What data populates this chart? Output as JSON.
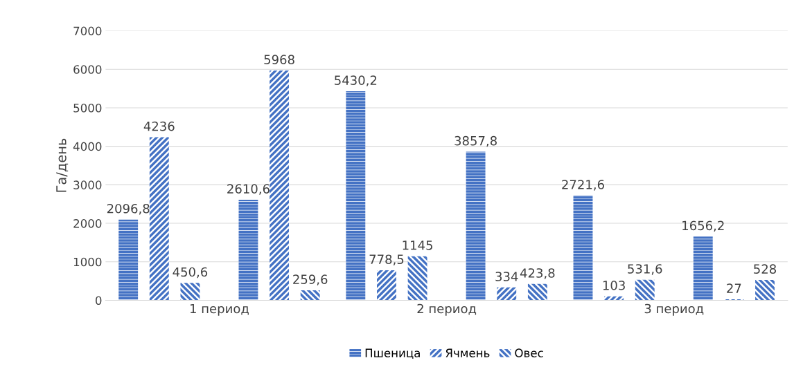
{
  "chart_data": {
    "type": "bar",
    "ylabel": "Га/день",
    "categories": [
      "1 период",
      "2 период",
      "3 период"
    ],
    "series": [
      {
        "name": "Пшеница",
        "color": "#4472c4",
        "values": [
          2096.8,
          5430.2,
          2721.6
        ],
        "value_labels": [
          "2096,8",
          "5430,2",
          "2721,6"
        ]
      },
      {
        "name": "Ячмень",
        "color": "#4472c4",
        "values": [
          4236,
          778.5,
          103
        ],
        "value_labels": [
          "4236",
          "778,5",
          "103"
        ]
      },
      {
        "name": "Овес",
        "color": "#4472c4",
        "values": [
          450.6,
          1145,
          531.6
        ],
        "value_labels": [
          "450,6",
          "1145",
          "531,6"
        ]
      },
      {
        "color": "#4472c4",
        "values": [
          2610.6,
          3857.8,
          1656.2
        ],
        "value_labels": [
          "2610,6",
          "3857,8",
          "1656,2"
        ]
      },
      {
        "color": "#4472c4",
        "values": [
          5968,
          334,
          27
        ],
        "value_labels": [
          "5968",
          "334",
          "27"
        ]
      },
      {
        "color": "#4472c4",
        "values": [
          259.6,
          423.8,
          528
        ],
        "value_labels": [
          "259,6",
          "423,8",
          "528"
        ]
      }
    ],
    "ylim": [
      0,
      7000
    ],
    "yticks": [
      0,
      1000,
      2000,
      3000,
      4000,
      5000,
      6000,
      7000
    ],
    "grid": "y",
    "legend": "bottom"
  }
}
